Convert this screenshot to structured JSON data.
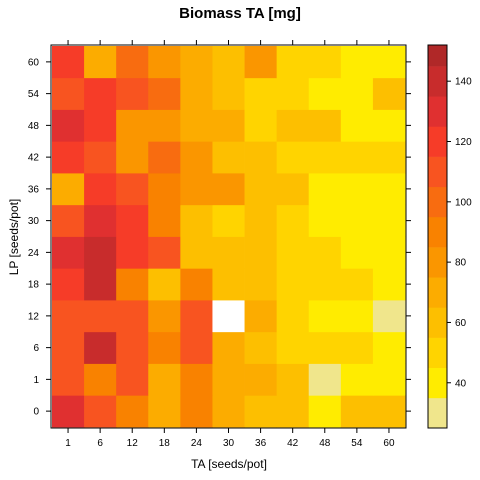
{
  "chart_data": {
    "type": "heatmap",
    "title": "Biomass TA [mg]",
    "xlabel": "TA [seeds/pot]",
    "ylabel": "LP [seeds/pot]",
    "x_categories": [
      "1",
      "6",
      "12",
      "18",
      "24",
      "30",
      "36",
      "42",
      "48",
      "54",
      "60"
    ],
    "y_categories": [
      "0",
      "1",
      "6",
      "12",
      "18",
      "24",
      "30",
      "36",
      "42",
      "48",
      "54",
      "60"
    ],
    "values": [
      [
        130,
        108,
        92,
        70,
        90,
        66,
        62,
        60,
        40,
        57,
        57
      ],
      [
        112,
        88,
        112,
        70,
        88,
        72,
        67,
        60,
        32,
        40,
        40
      ],
      [
        112,
        140,
        112,
        85,
        105,
        70,
        60,
        53,
        53,
        53,
        40
      ],
      [
        112,
        112,
        112,
        75,
        105,
        null,
        72,
        52,
        40,
        40,
        30
      ],
      [
        122,
        137,
        88,
        64,
        85,
        55,
        55,
        54,
        54,
        51,
        40
      ],
      [
        132,
        137,
        122,
        105,
        64,
        64,
        64,
        49,
        49,
        40,
        40
      ],
      [
        112,
        126,
        118,
        85,
        60,
        48,
        58,
        45,
        40,
        40,
        40
      ],
      [
        70,
        118,
        105,
        86,
        80,
        80,
        62,
        62,
        40,
        40,
        40
      ],
      [
        122,
        108,
        75,
        100,
        75,
        60,
        60,
        53,
        53,
        53,
        53
      ],
      [
        126,
        122,
        78,
        78,
        73,
        73,
        50,
        60,
        55,
        40,
        40
      ],
      [
        110,
        122,
        108,
        95,
        70,
        64,
        53,
        53,
        40,
        40,
        55
      ],
      [
        115,
        72,
        95,
        84,
        70,
        62,
        82,
        54,
        54,
        40,
        40
      ]
    ],
    "missing_cell_color": "#ffffff",
    "zlim": [
      25,
      152
    ],
    "colorkey": {
      "breaks": [
        25,
        35,
        45,
        55,
        65,
        75,
        85,
        95,
        105,
        115,
        125,
        135,
        145,
        152
      ],
      "colors": [
        "#f0e68c",
        "#ffec00",
        "#ffd400",
        "#fdbf00",
        "#fcac00",
        "#fa9600",
        "#f98200",
        "#f86c10",
        "#f85420",
        "#f63c28",
        "#e03030",
        "#c82c2c",
        "#b02828",
        "#8c1c1c"
      ],
      "ticks": [
        40,
        60,
        80,
        100,
        120,
        140
      ],
      "placement": "right"
    },
    "grid": false
  }
}
